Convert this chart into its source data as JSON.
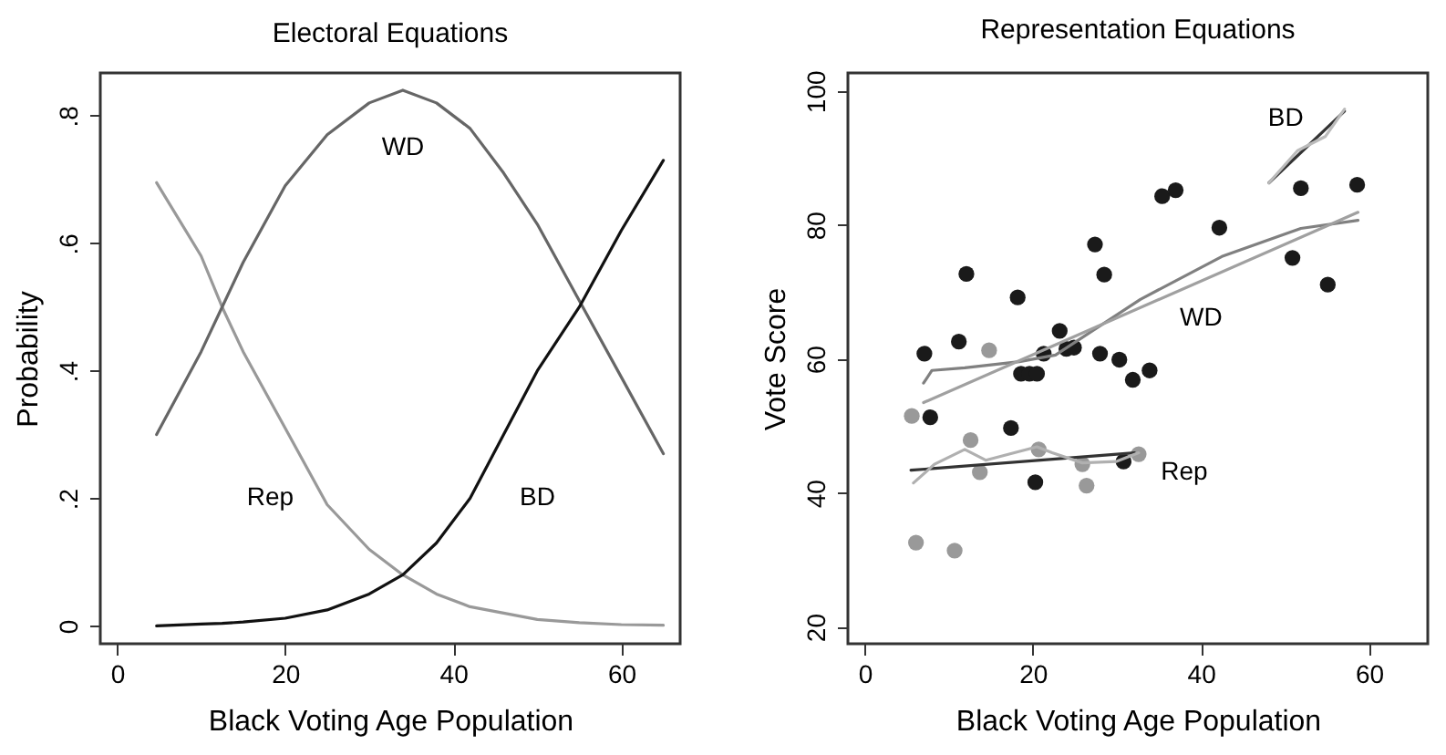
{
  "chart_data": [
    {
      "type": "line",
      "title": "Electoral Equations",
      "xlabel": "Black Voting Age Population",
      "ylabel": "Probability",
      "xlim": [
        -2,
        67
      ],
      "ylim": [
        -0.028,
        0.867
      ],
      "xticks": [
        0,
        20,
        40,
        60
      ],
      "yticks": [
        0,
        {
          "value": 0.2,
          "label": ".2"
        },
        {
          "value": 0.4,
          "label": ".4"
        },
        {
          "value": 0.6,
          "label": ".6"
        },
        {
          "value": 0.8,
          "label": ".8"
        }
      ],
      "x": [
        4.7,
        10,
        12.5,
        15,
        20,
        25,
        30,
        34,
        38,
        42,
        46,
        50,
        55,
        60,
        65
      ],
      "series": [
        {
          "color": "#999999",
          "values": [
            0.695,
            0.58,
            0.5,
            0.43,
            0.31,
            0.19,
            0.12,
            0.08,
            0.05,
            0.03,
            0.02,
            0.01,
            0.005,
            0.002,
            0.001
          ]
        },
        {
          "color": "#666666",
          "values": [
            0.3,
            0.43,
            0.5,
            0.57,
            0.69,
            0.77,
            0.82,
            0.84,
            0.82,
            0.78,
            0.71,
            0.63,
            0.51,
            0.39,
            0.27
          ]
        },
        {
          "color": "#111111",
          "values": [
            0.0,
            0.003,
            0.004,
            0.006,
            0.012,
            0.025,
            0.05,
            0.08,
            0.13,
            0.2,
            0.3,
            0.4,
            0.5,
            0.62,
            0.73
          ]
        }
      ],
      "annotations": [
        "WD",
        "Rep",
        "BD"
      ]
    },
    {
      "type": "scatter",
      "title": "Representation Equations",
      "xlabel": "Black Voting Age Population",
      "ylabel": "Vote Score",
      "xlim": [
        -2,
        67
      ],
      "ylim": [
        17.5,
        102.7
      ],
      "xticks": [
        0,
        20,
        40,
        60
      ],
      "yticks": [
        20,
        40,
        60,
        80,
        100
      ],
      "series": [
        {
          "color": "#1a1a1a",
          "x": [
            7.1,
            7.8,
            11.2,
            12.1,
            18.2,
            17.4,
            18.6,
            19.6,
            20.5,
            21.3,
            20.3,
            23.2,
            24.0,
            24.9,
            28.0,
            27.4,
            28.5,
            30.3,
            31.9,
            33.9,
            30.8,
            35.4,
            37.0,
            42.2,
            50.9,
            51.9,
            55.1,
            58.6
          ],
          "values": [
            60.8,
            51.3,
            62.6,
            72.7,
            69.2,
            49.7,
            57.8,
            57.8,
            57.8,
            60.8,
            41.6,
            64.2,
            61.5,
            61.7,
            60.8,
            77.1,
            72.6,
            59.9,
            56.9,
            58.3,
            44.7,
            84.3,
            85.2,
            79.6,
            75.1,
            85.5,
            71.1,
            86.0
          ]
        },
        {
          "color": "#999999",
          "x": [
            5.6,
            6.1,
            10.7,
            12.6,
            13.7,
            14.8,
            20.7,
            25.9,
            26.4,
            32.6
          ],
          "values": [
            51.5,
            32.6,
            31.4,
            47.9,
            43.1,
            61.3,
            46.5,
            44.3,
            41.1,
            45.8
          ]
        },
        {
          "type": "line",
          "color": "#808080",
          "x": [
            7.0,
            8.0,
            11.9,
            18.4,
            22.7,
            32.8,
            42.5,
            51.9,
            58.7
          ],
          "values": [
            56.4,
            58.3,
            58.7,
            59.6,
            60.6,
            68.9,
            75.3,
            79.5,
            80.7
          ]
        },
        {
          "type": "line",
          "color": "#a0a0a0",
          "x": [
            7.0,
            58.7
          ],
          "values": [
            53.5,
            81.9
          ]
        },
        {
          "type": "line",
          "color": "#333333",
          "x": [
            5.5,
            32.1
          ],
          "values": [
            43.4,
            46.0
          ]
        },
        {
          "type": "line",
          "color": "#b0b0b0",
          "x": [
            5.8,
            8.3,
            11.9,
            14.4,
            20.5,
            22.3,
            25.9,
            29.9,
            32.6
          ],
          "values": [
            41.5,
            44.3,
            46.5,
            44.9,
            46.9,
            46.0,
            44.5,
            44.7,
            46.0
          ]
        },
        {
          "type": "line",
          "color": "#333333",
          "x": [
            48.1,
            57.1
          ],
          "values": [
            86.3,
            97.0
          ]
        },
        {
          "type": "line",
          "color": "#bbbbbb",
          "x": [
            48.1,
            51.5,
            54.8,
            57.1
          ],
          "values": [
            86.3,
            91.1,
            93.2,
            97.3
          ]
        }
      ],
      "annotations": [
        "BD",
        "WD",
        "Rep"
      ]
    }
  ]
}
